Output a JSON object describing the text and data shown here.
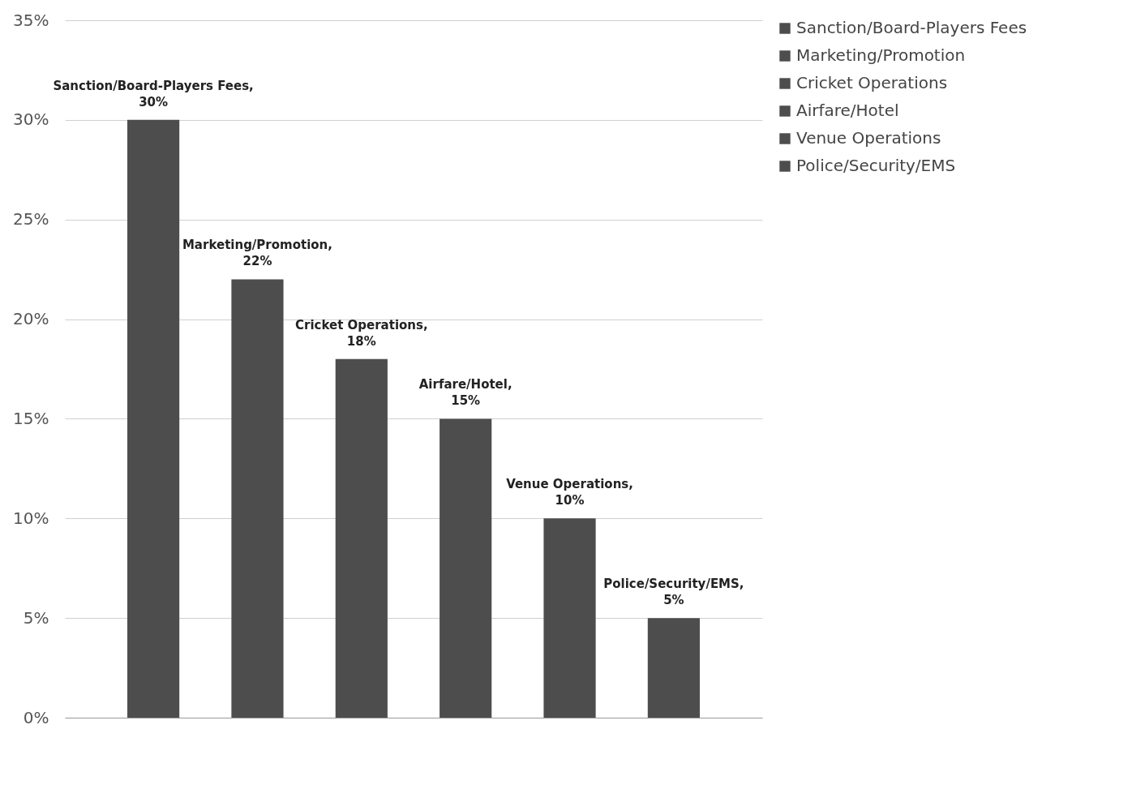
{
  "chart_data": {
    "type": "bar",
    "categories": [
      null,
      null,
      null,
      null,
      null,
      null
    ],
    "series": [
      {
        "name": "Sanction/Board-Players Fees",
        "color": "#4d4d4d",
        "values": [
          30,
          null,
          null,
          null,
          null,
          null
        ],
        "value_labels": [
          "Sanction/Board-Players Fees, 30%",
          null,
          null,
          null,
          null,
          null
        ]
      },
      {
        "name": "Marketing/Promotion",
        "color": "#4d4d4d",
        "values": [
          null,
          22,
          null,
          null,
          null,
          null
        ],
        "value_labels": [
          null,
          "Marketing/Promotion, 22%",
          null,
          null,
          null,
          null
        ]
      },
      {
        "name": "Cricket Operations",
        "color": "#4d4d4d",
        "values": [
          null,
          null,
          18,
          null,
          null,
          null
        ],
        "value_labels": [
          null,
          null,
          "Cricket Operations, 18%",
          null,
          null,
          null
        ]
      },
      {
        "name": "Airfare/Hotel",
        "color": "#4d4d4d",
        "values": [
          null,
          null,
          null,
          15,
          null,
          null
        ],
        "value_labels": [
          null,
          null,
          null,
          "Airfare/Hotel, 15%",
          null,
          null
        ]
      },
      {
        "name": "Venue Operations",
        "color": "#4d4d4d",
        "values": [
          null,
          null,
          null,
          null,
          10,
          null
        ],
        "value_labels": [
          null,
          null,
          null,
          null,
          "Venue Operations, 10%",
          null
        ]
      },
      {
        "name": "Police/Security/EMS",
        "color": "#4d4d4d",
        "values": [
          null,
          null,
          null,
          null,
          null,
          5
        ],
        "value_labels": [
          null,
          null,
          null,
          null,
          null,
          "Police/Security/EMS, 5%"
        ]
      }
    ],
    "ylim": [
      0,
      35
    ],
    "yticks": [
      {
        "value": 0,
        "label": "0%"
      },
      {
        "value": 5,
        "label": "5%"
      },
      {
        "value": 10,
        "label": "10%"
      },
      {
        "value": 15,
        "label": "15%"
      },
      {
        "value": 20,
        "label": "20%"
      },
      {
        "value": 25,
        "label": "25%"
      },
      {
        "value": 30,
        "label": "30%"
      },
      {
        "value": 35,
        "label": "35%"
      }
    ],
    "grid": "y",
    "legend": "right",
    "tick_labels": "y"
  }
}
